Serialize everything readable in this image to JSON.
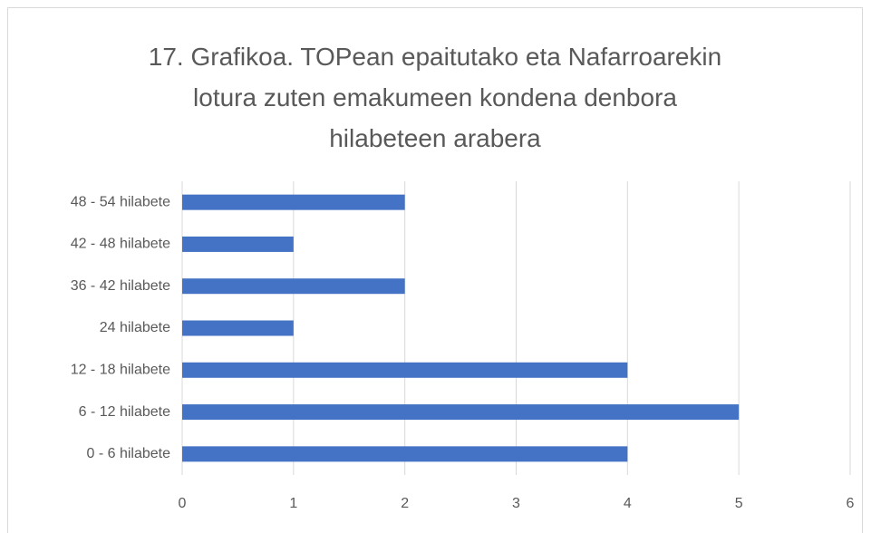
{
  "chart_data": {
    "type": "bar",
    "orientation": "horizontal",
    "title": "17. Grafikoa. TOPean epaitutako eta Nafarroarekin lotura zuten emakumeen kondena denbora hilabeteen arabera",
    "categories": [
      "0 - 6 hilabete",
      "6 - 12 hilabete",
      "12 - 18 hilabete",
      "24 hilabete",
      "36 - 42 hilabete",
      "42 - 48 hilabete",
      "48 - 54 hilabete"
    ],
    "values": [
      4,
      5,
      4,
      1,
      2,
      1,
      2
    ],
    "color": "#4472c4",
    "xlim": [
      0,
      6
    ],
    "xticks": [
      0,
      1,
      2,
      3,
      4,
      5,
      6
    ],
    "grid": true
  }
}
